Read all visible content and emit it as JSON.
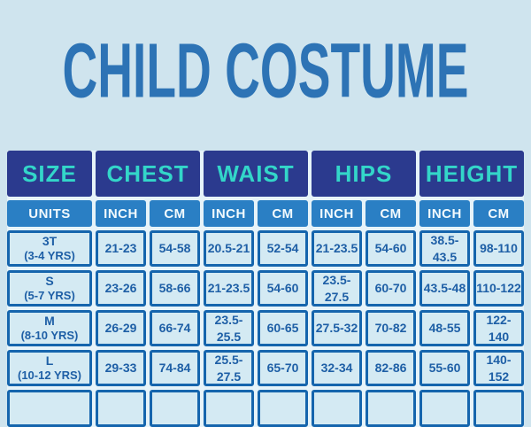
{
  "page": {
    "title": "CHILD COSTUME"
  },
  "colors": {
    "background": "#cfe4ee",
    "title_blue": "#2d73b5",
    "header_navy": "#2b3a8e",
    "header_teal": "#33d6c9",
    "subheader_blue": "#2a7fc4",
    "cell_background": "#d4eaf3",
    "cell_border": "#1565ad",
    "cell_text": "#1e5fa6"
  },
  "table": {
    "column_headers": [
      "SIZE",
      "CHEST",
      "WAIST",
      "HIPS",
      "HEIGHT"
    ],
    "unit_row": {
      "label": "UNITS",
      "units": [
        "INCH",
        "CM",
        "INCH",
        "CM",
        "INCH",
        "CM",
        "INCH",
        "CM"
      ]
    },
    "rows": [
      {
        "size": "3T",
        "age": "(3-4 YRS)",
        "chest_inch": "21-23",
        "chest_cm": "54-58",
        "waist_inch": "20.5-21",
        "waist_cm": "52-54",
        "hips_inch": "21-23.5",
        "hips_cm": "54-60",
        "height_inch": "38.5-43.5",
        "height_cm": "98-110"
      },
      {
        "size": "S",
        "age": "(5-7 YRS)",
        "chest_inch": "23-26",
        "chest_cm": "58-66",
        "waist_inch": "21-23.5",
        "waist_cm": "54-60",
        "hips_inch": "23.5-27.5",
        "hips_cm": "60-70",
        "height_inch": "43.5-48",
        "height_cm": "110-122"
      },
      {
        "size": "M",
        "age": "(8-10 YRS)",
        "chest_inch": "26-29",
        "chest_cm": "66-74",
        "waist_inch": "23.5-25.5",
        "waist_cm": "60-65",
        "hips_inch": "27.5-32",
        "hips_cm": "70-82",
        "height_inch": "48-55",
        "height_cm": "122-140"
      },
      {
        "size": "L",
        "age": "(10-12 YRS)",
        "chest_inch": "29-33",
        "chest_cm": "74-84",
        "waist_inch": "25.5-27.5",
        "waist_cm": "65-70",
        "hips_inch": "32-34",
        "hips_cm": "82-86",
        "height_inch": "55-60",
        "height_cm": "140-152"
      }
    ]
  }
}
